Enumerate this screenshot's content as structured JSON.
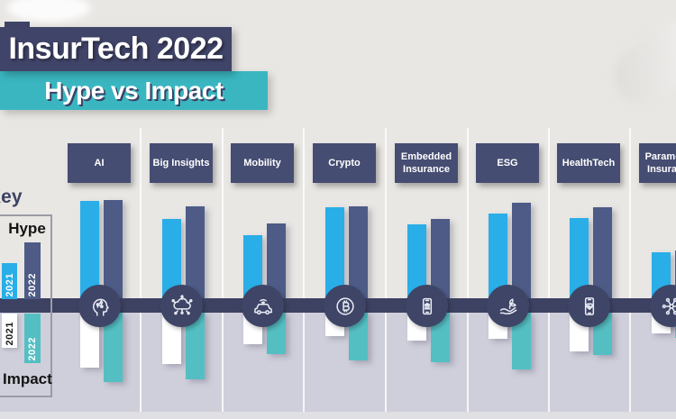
{
  "title": {
    "main": "InsurTech 2022",
    "sub": "Hype vs Impact"
  },
  "legend": {
    "key": "Key",
    "hype": "Hype",
    "impact": "Impact",
    "year_2021": "2021",
    "year_2022": "2022"
  },
  "colors": {
    "bg_top": "#E9E7E4",
    "bg_bottom": "#CFCFDB",
    "timeline": "#3D4263",
    "node_circle": "#3F4566",
    "category_box": "#464D72",
    "title_box": "#404468",
    "subtitle_box": "#3AB6C0",
    "hype_2021": "#29AEE8",
    "hype_2022": "#4D5B86",
    "impact_2021": "#FFFFFF",
    "impact_2022": "#54BFC3"
  },
  "chart_data": {
    "type": "bar",
    "variant": "diverging timeline (Hype above axis, Impact below axis)",
    "title": "InsurTech 2022 — Hype vs Impact",
    "categories": [
      "AI",
      "Big Insights",
      "Mobility",
      "Crypto",
      "Embedded Insurance",
      "ESG",
      "HealthTech",
      "Parametric Insurance"
    ],
    "icons": [
      "head-circuit-icon",
      "cloud-network-icon",
      "connected-car-icon",
      "bitcoin-icon",
      "bank-phone-icon",
      "plant-hand-icon",
      "health-phone-icon",
      "network-nodes-icon"
    ],
    "series": [
      {
        "name": "Hype 2021",
        "color": "#29AEE8",
        "values": [
          95,
          77,
          62,
          89,
          72,
          83,
          78,
          45
        ]
      },
      {
        "name": "Hype 2022",
        "color": "#4D5B86",
        "values": [
          96,
          90,
          73,
          90,
          77,
          93,
          89,
          47
        ]
      },
      {
        "name": "Impact 2021",
        "color": "#FFFFFF",
        "values": [
          53,
          50,
          30,
          23,
          27,
          25,
          37,
          20
        ]
      },
      {
        "name": "Impact 2022",
        "color": "#54BFC3",
        "values": [
          67,
          64,
          40,
          46,
          48,
          55,
          41,
          24
        ]
      }
    ],
    "ylabel": "",
    "xlabel": "",
    "axis_values_shown": false,
    "value_scale": "relative 0-100, estimated from bar heights (no numeric axis in figure)",
    "legend_position": "left"
  }
}
